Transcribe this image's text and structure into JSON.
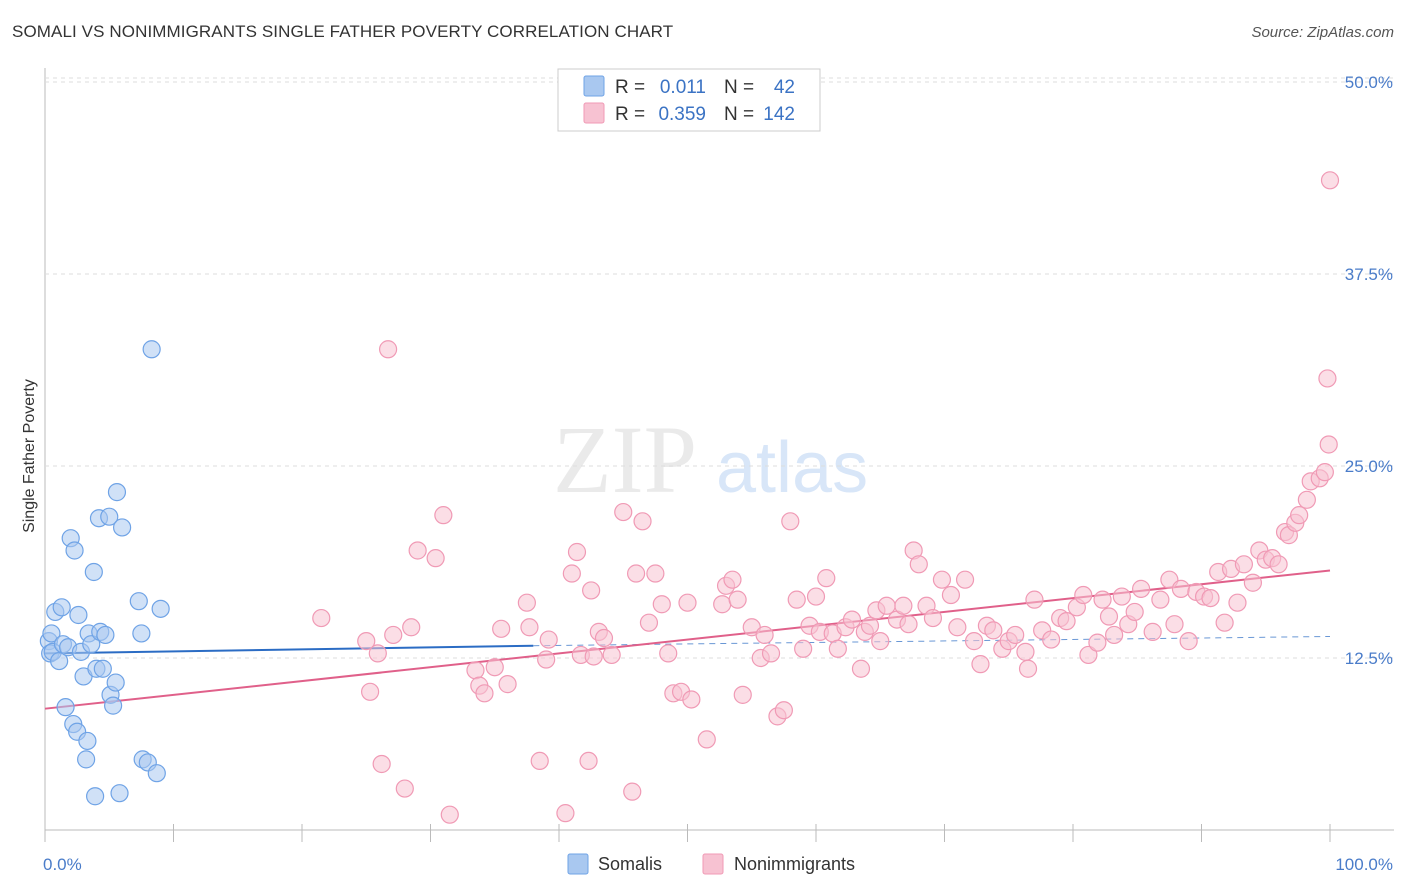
{
  "title": "SOMALI VS NONIMMIGRANTS SINGLE FATHER POVERTY CORRELATION CHART",
  "source": "Source: ZipAtlas.com",
  "watermark": {
    "zip": "ZIP",
    "atlas": "atlas"
  },
  "chart_data": {
    "type": "scatter",
    "ylabel": "Single Father Poverty",
    "xlim": [
      0,
      100
    ],
    "ylim": [
      0,
      50
    ],
    "y_ticks": [
      {
        "value": 12.5,
        "label": "12.5%"
      },
      {
        "value": 25,
        "label": "25.0%"
      },
      {
        "value": 37.5,
        "label": "37.5%"
      },
      {
        "value": 50,
        "label": "50.0%"
      }
    ],
    "x_labels": {
      "min": "0.0%",
      "max": "100.0%"
    },
    "legend": {
      "r_label": "R =",
      "n_label": "N =",
      "entries": [
        {
          "name": "Somalis",
          "r": "0.011",
          "n": "42"
        },
        {
          "name": "Nonimmigrants",
          "r": "0.359",
          "n": "142"
        }
      ]
    },
    "series": [
      {
        "name": "Somalis",
        "color": "#6fa3e6",
        "fill": "#a9c8f0",
        "line_color": "#2b6cc4",
        "trend": {
          "x0": 0,
          "y0": 12.8,
          "x1": 38,
          "y1": 13.3,
          "dash_to": 100,
          "dash_y": 13.9
        },
        "points": [
          [
            0.3,
            13.6
          ],
          [
            0.4,
            12.8
          ],
          [
            0.5,
            14.1
          ],
          [
            0.6,
            12.9
          ],
          [
            0.8,
            15.5
          ],
          [
            1.1,
            12.3
          ],
          [
            1.3,
            15.8
          ],
          [
            1.4,
            13.4
          ],
          [
            1.6,
            9.3
          ],
          [
            1.8,
            13.2
          ],
          [
            2.0,
            20.3
          ],
          [
            2.2,
            8.2
          ],
          [
            2.3,
            19.5
          ],
          [
            2.5,
            7.7
          ],
          [
            2.6,
            15.3
          ],
          [
            2.8,
            12.9
          ],
          [
            3.0,
            11.3
          ],
          [
            3.2,
            5.9
          ],
          [
            3.3,
            7.1
          ],
          [
            3.4,
            14.1
          ],
          [
            3.6,
            13.4
          ],
          [
            3.8,
            18.1
          ],
          [
            3.9,
            3.5
          ],
          [
            4.0,
            11.8
          ],
          [
            4.2,
            21.6
          ],
          [
            4.3,
            14.2
          ],
          [
            4.5,
            11.8
          ],
          [
            4.7,
            14.0
          ],
          [
            5.0,
            21.7
          ],
          [
            5.1,
            10.1
          ],
          [
            5.3,
            9.4
          ],
          [
            5.5,
            10.9
          ],
          [
            5.6,
            23.3
          ],
          [
            5.8,
            3.7
          ],
          [
            6.0,
            21.0
          ],
          [
            7.3,
            16.2
          ],
          [
            7.5,
            14.1
          ],
          [
            7.6,
            5.9
          ],
          [
            8.0,
            5.7
          ],
          [
            8.3,
            32.6
          ],
          [
            8.7,
            5.0
          ],
          [
            9.0,
            15.7
          ]
        ]
      },
      {
        "name": "Nonimmigrants",
        "color": "#f09ab5",
        "fill": "#f7c2d2",
        "line_color": "#e0608a",
        "trend": {
          "x0": 0,
          "y0": 9.2,
          "x1": 100,
          "y1": 18.2
        },
        "points": [
          [
            21.5,
            15.1
          ],
          [
            25.0,
            13.6
          ],
          [
            25.3,
            10.3
          ],
          [
            25.9,
            12.8
          ],
          [
            26.2,
            5.6
          ],
          [
            26.7,
            32.6
          ],
          [
            27.1,
            14.0
          ],
          [
            28.0,
            4.0
          ],
          [
            28.5,
            14.5
          ],
          [
            29.0,
            19.5
          ],
          [
            30.4,
            19.0
          ],
          [
            31.0,
            21.8
          ],
          [
            31.5,
            2.3
          ],
          [
            33.5,
            11.7
          ],
          [
            33.8,
            10.7
          ],
          [
            34.2,
            10.2
          ],
          [
            35.0,
            11.9
          ],
          [
            35.5,
            14.4
          ],
          [
            36.0,
            10.8
          ],
          [
            37.5,
            16.1
          ],
          [
            37.7,
            14.5
          ],
          [
            38.5,
            5.8
          ],
          [
            39.0,
            12.4
          ],
          [
            39.2,
            13.7
          ],
          [
            40.5,
            2.4
          ],
          [
            41.0,
            18.0
          ],
          [
            41.4,
            19.4
          ],
          [
            41.7,
            12.7
          ],
          [
            42.3,
            5.8
          ],
          [
            42.5,
            16.9
          ],
          [
            42.7,
            12.6
          ],
          [
            43.1,
            14.2
          ],
          [
            43.5,
            13.8
          ],
          [
            44.1,
            12.7
          ],
          [
            45.0,
            22.0
          ],
          [
            45.7,
            3.8
          ],
          [
            46.0,
            18.0
          ],
          [
            46.5,
            21.4
          ],
          [
            47.0,
            14.8
          ],
          [
            47.5,
            18.0
          ],
          [
            48.0,
            16.0
          ],
          [
            48.5,
            12.8
          ],
          [
            48.9,
            10.2
          ],
          [
            49.5,
            10.3
          ],
          [
            50.0,
            16.1
          ],
          [
            50.3,
            9.8
          ],
          [
            51.5,
            7.2
          ],
          [
            52.7,
            16.0
          ],
          [
            53.0,
            17.2
          ],
          [
            53.5,
            17.6
          ],
          [
            53.9,
            16.3
          ],
          [
            54.3,
            10.1
          ],
          [
            55.0,
            14.5
          ],
          [
            55.7,
            12.5
          ],
          [
            56.0,
            14.0
          ],
          [
            56.5,
            12.8
          ],
          [
            57.0,
            8.7
          ],
          [
            57.5,
            9.1
          ],
          [
            58.0,
            21.4
          ],
          [
            58.5,
            16.3
          ],
          [
            59.0,
            13.1
          ],
          [
            59.5,
            14.6
          ],
          [
            60.0,
            16.5
          ],
          [
            60.3,
            14.2
          ],
          [
            60.8,
            17.7
          ],
          [
            61.3,
            14.1
          ],
          [
            61.7,
            13.1
          ],
          [
            62.3,
            14.5
          ],
          [
            62.8,
            15.0
          ],
          [
            63.5,
            11.8
          ],
          [
            63.8,
            14.2
          ],
          [
            64.2,
            14.6
          ],
          [
            64.7,
            15.6
          ],
          [
            65.0,
            13.6
          ],
          [
            65.5,
            15.9
          ],
          [
            66.3,
            15.0
          ],
          [
            66.8,
            15.9
          ],
          [
            67.2,
            14.7
          ],
          [
            67.6,
            19.5
          ],
          [
            68.0,
            18.6
          ],
          [
            68.6,
            15.9
          ],
          [
            69.1,
            15.1
          ],
          [
            69.8,
            17.6
          ],
          [
            70.5,
            16.6
          ],
          [
            71.0,
            14.5
          ],
          [
            71.6,
            17.6
          ],
          [
            72.3,
            13.6
          ],
          [
            72.8,
            12.1
          ],
          [
            73.3,
            14.6
          ],
          [
            73.8,
            14.3
          ],
          [
            74.5,
            13.1
          ],
          [
            75.0,
            13.6
          ],
          [
            75.5,
            14.0
          ],
          [
            76.3,
            12.9
          ],
          [
            76.5,
            11.8
          ],
          [
            77.0,
            16.3
          ],
          [
            77.6,
            14.3
          ],
          [
            78.3,
            13.7
          ],
          [
            79.0,
            15.1
          ],
          [
            79.5,
            14.9
          ],
          [
            80.3,
            15.8
          ],
          [
            80.8,
            16.6
          ],
          [
            81.2,
            12.7
          ],
          [
            81.9,
            13.5
          ],
          [
            82.3,
            16.3
          ],
          [
            82.8,
            15.2
          ],
          [
            83.2,
            14.0
          ],
          [
            83.8,
            16.5
          ],
          [
            84.3,
            14.7
          ],
          [
            84.8,
            15.5
          ],
          [
            85.3,
            17.0
          ],
          [
            86.2,
            14.2
          ],
          [
            86.8,
            16.3
          ],
          [
            87.5,
            17.6
          ],
          [
            87.9,
            14.7
          ],
          [
            88.4,
            17.0
          ],
          [
            89.0,
            13.6
          ],
          [
            89.6,
            16.8
          ],
          [
            90.2,
            16.5
          ],
          [
            90.7,
            16.4
          ],
          [
            91.3,
            18.1
          ],
          [
            91.8,
            14.8
          ],
          [
            92.3,
            18.3
          ],
          [
            92.8,
            16.1
          ],
          [
            93.3,
            18.6
          ],
          [
            94.0,
            17.4
          ],
          [
            94.5,
            19.5
          ],
          [
            95.0,
            18.9
          ],
          [
            95.5,
            19.0
          ],
          [
            96.0,
            18.6
          ],
          [
            96.5,
            20.7
          ],
          [
            96.8,
            20.5
          ],
          [
            97.3,
            21.3
          ],
          [
            97.6,
            21.8
          ],
          [
            98.2,
            22.8
          ],
          [
            98.5,
            24.0
          ],
          [
            99.2,
            24.2
          ],
          [
            99.6,
            24.6
          ],
          [
            100.0,
            43.6
          ],
          [
            99.8,
            30.7
          ],
          [
            99.9,
            26.4
          ]
        ]
      }
    ]
  }
}
